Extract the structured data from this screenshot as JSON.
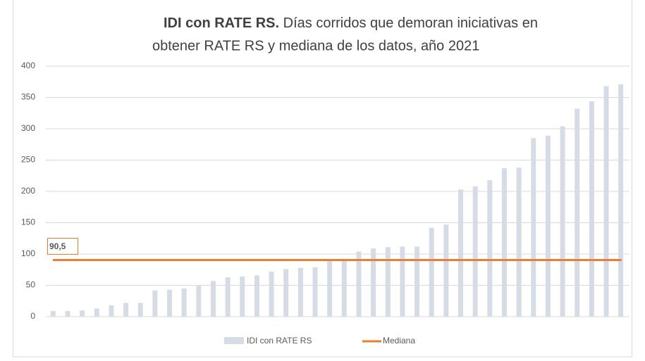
{
  "chart_data": {
    "type": "bar",
    "title": {
      "bold": "IDI con RATE RS.",
      "line1": "Días corridos que demoran iniciativas en",
      "line2": "obtener RATE RS y mediana de los datos, año 2021"
    },
    "series": [
      {
        "name": "IDI con RATE RS",
        "color": "#d6dce5",
        "values": [
          9,
          9,
          10,
          13,
          18,
          22,
          22,
          42,
          43,
          45,
          50,
          57,
          63,
          64,
          66,
          72,
          76,
          78,
          79,
          90,
          91,
          104,
          109,
          111,
          112,
          112,
          142,
          147,
          203,
          208,
          218,
          237,
          238,
          285,
          289,
          304,
          332,
          344,
          368,
          371
        ]
      }
    ],
    "median": {
      "name": "Mediana",
      "color": "#ed7d31",
      "value": 90.5,
      "label": "90,5"
    },
    "ylim": [
      0,
      400
    ],
    "yticks": [
      0,
      50,
      100,
      150,
      200,
      250,
      300,
      350,
      400
    ],
    "grid": true
  }
}
